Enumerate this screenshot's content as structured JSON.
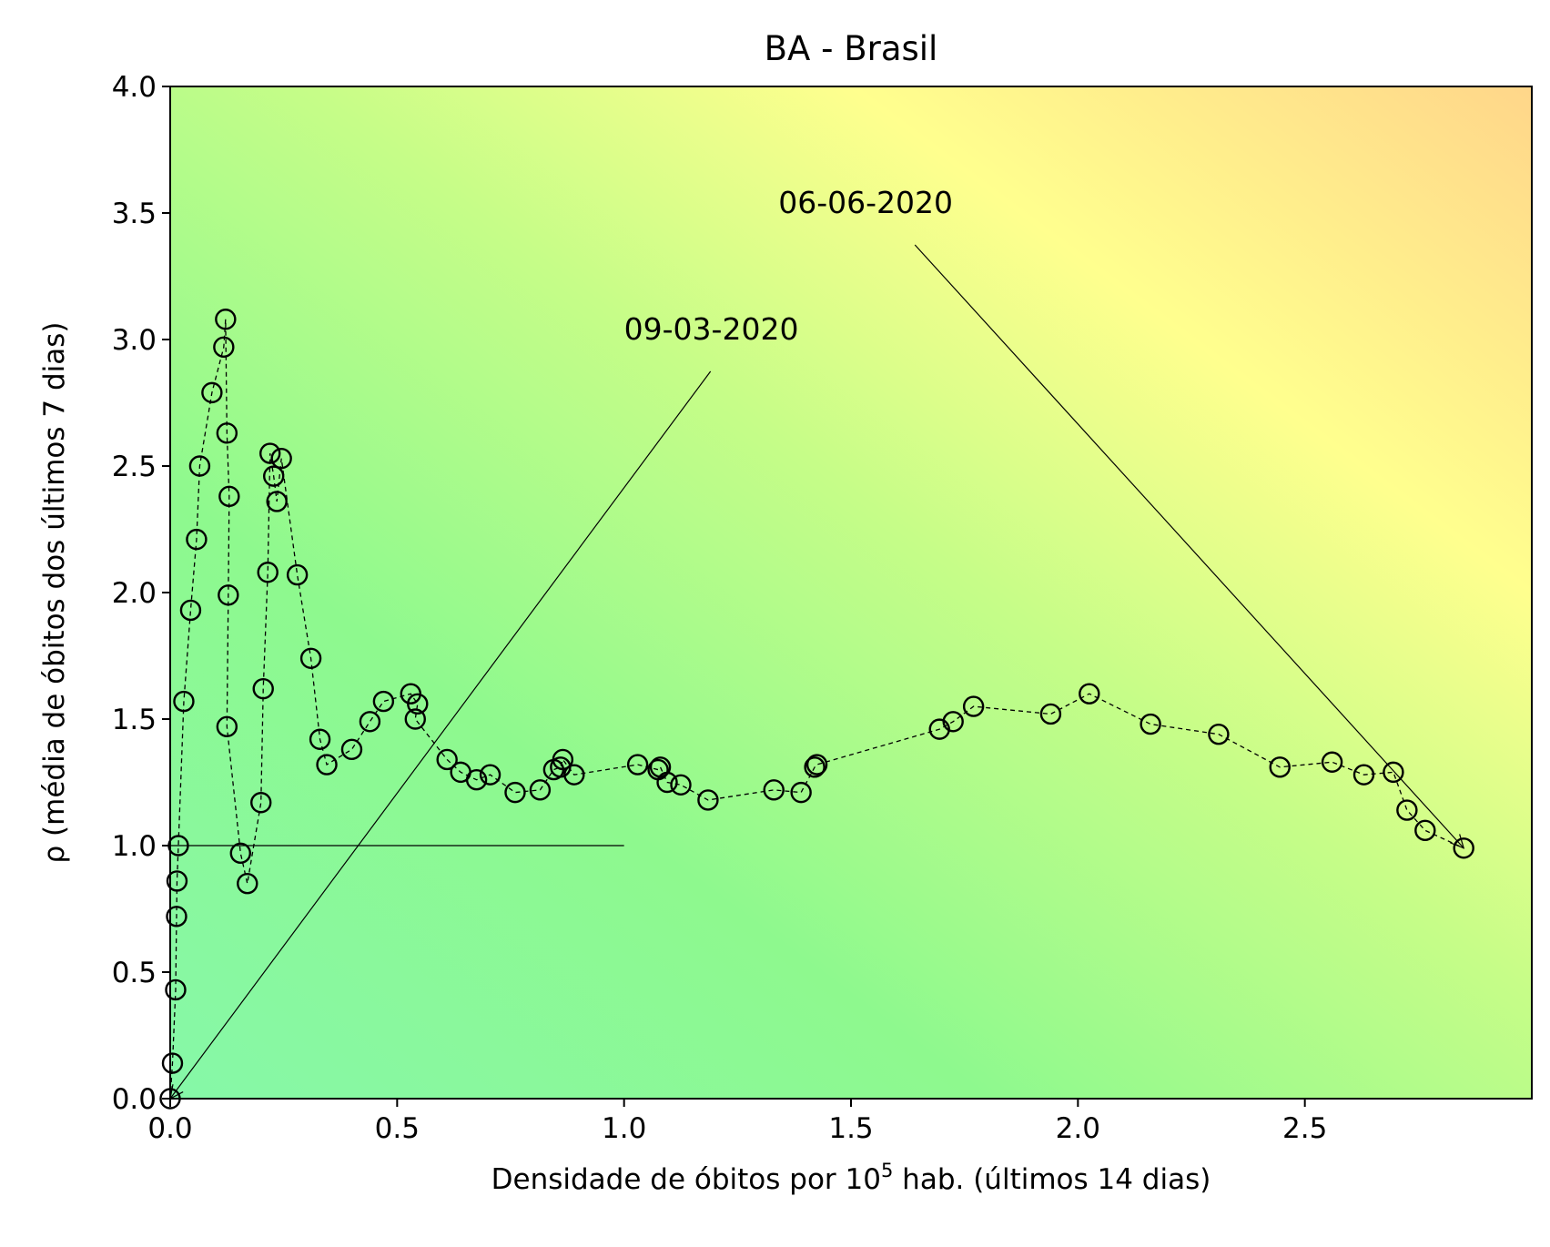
{
  "chart_data": {
    "type": "scatter",
    "title": "BA - Brasil",
    "xlabel_main": "Densidade de óbitos por 10",
    "xlabel_sup": "5",
    "xlabel_rest": " hab. (últimos 14 dias)",
    "ylabel": "ρ (média de óbitos dos últimos 7 dias)",
    "xlim": [
      0,
      3.0
    ],
    "ylim": [
      0,
      4.0
    ],
    "xticks": [
      "0.0",
      "0.5",
      "1.0",
      "1.5",
      "2.0",
      "2.5"
    ],
    "yticks": [
      "0.0",
      "0.5",
      "1.0",
      "1.5",
      "2.0",
      "2.5",
      "3.0",
      "3.5",
      "4.0"
    ],
    "reference_line": {
      "y": 1.0,
      "x_from": 0.0,
      "x_to": 1.0
    },
    "background_colors": [
      "#86f8a8",
      "#8ef98e",
      "#c6fd88",
      "#ffff8e",
      "#ffd68a"
    ],
    "series": [
      {
        "style": "dashed-line-open-circles",
        "x": [
          0.0,
          0.005,
          0.012,
          0.014,
          0.015,
          0.018,
          0.03,
          0.045,
          0.058,
          0.065,
          0.092,
          0.118,
          0.122,
          0.125,
          0.13,
          0.128,
          0.125,
          0.155,
          0.17,
          0.2,
          0.205,
          0.215,
          0.22,
          0.228,
          0.235,
          0.245,
          0.28,
          0.31,
          0.33,
          0.345,
          0.4,
          0.44,
          0.47,
          0.53,
          0.545,
          0.54,
          0.61,
          0.64,
          0.675,
          0.705,
          0.76,
          0.815,
          0.845,
          0.86,
          0.865,
          0.89,
          1.03,
          1.075,
          1.08,
          1.095,
          1.125,
          1.185,
          1.33,
          1.39,
          1.42,
          1.425,
          1.695,
          1.725,
          1.77,
          1.94,
          2.025,
          2.16,
          2.31,
          2.445,
          2.56,
          2.63,
          2.695,
          2.725,
          2.765,
          2.85
        ],
        "y": [
          0.0,
          0.14,
          0.43,
          0.72,
          0.86,
          1.0,
          1.57,
          1.93,
          2.21,
          2.5,
          2.79,
          2.97,
          3.08,
          2.63,
          2.38,
          1.99,
          1.47,
          0.97,
          0.85,
          1.17,
          1.62,
          2.08,
          2.55,
          2.46,
          2.36,
          2.53,
          2.07,
          1.74,
          1.42,
          1.32,
          1.38,
          1.49,
          1.57,
          1.6,
          1.56,
          1.5,
          1.34,
          1.29,
          1.26,
          1.28,
          1.21,
          1.22,
          1.3,
          1.31,
          1.34,
          1.28,
          1.32,
          1.3,
          1.31,
          1.25,
          1.24,
          1.18,
          1.22,
          1.21,
          1.31,
          1.32,
          1.46,
          1.49,
          1.55,
          1.52,
          1.6,
          1.48,
          1.44,
          1.31,
          1.33,
          1.28,
          1.29,
          1.14,
          1.06,
          0.99
        ]
      }
    ],
    "annotations": [
      {
        "text": "09-03-2020",
        "point": [
          0.0,
          0.0
        ],
        "text_pos": [
          1.0,
          3.0
        ]
      },
      {
        "text": "06-06-2020",
        "point": [
          2.85,
          0.99
        ],
        "text_pos": [
          1.34,
          3.5
        ]
      }
    ]
  }
}
